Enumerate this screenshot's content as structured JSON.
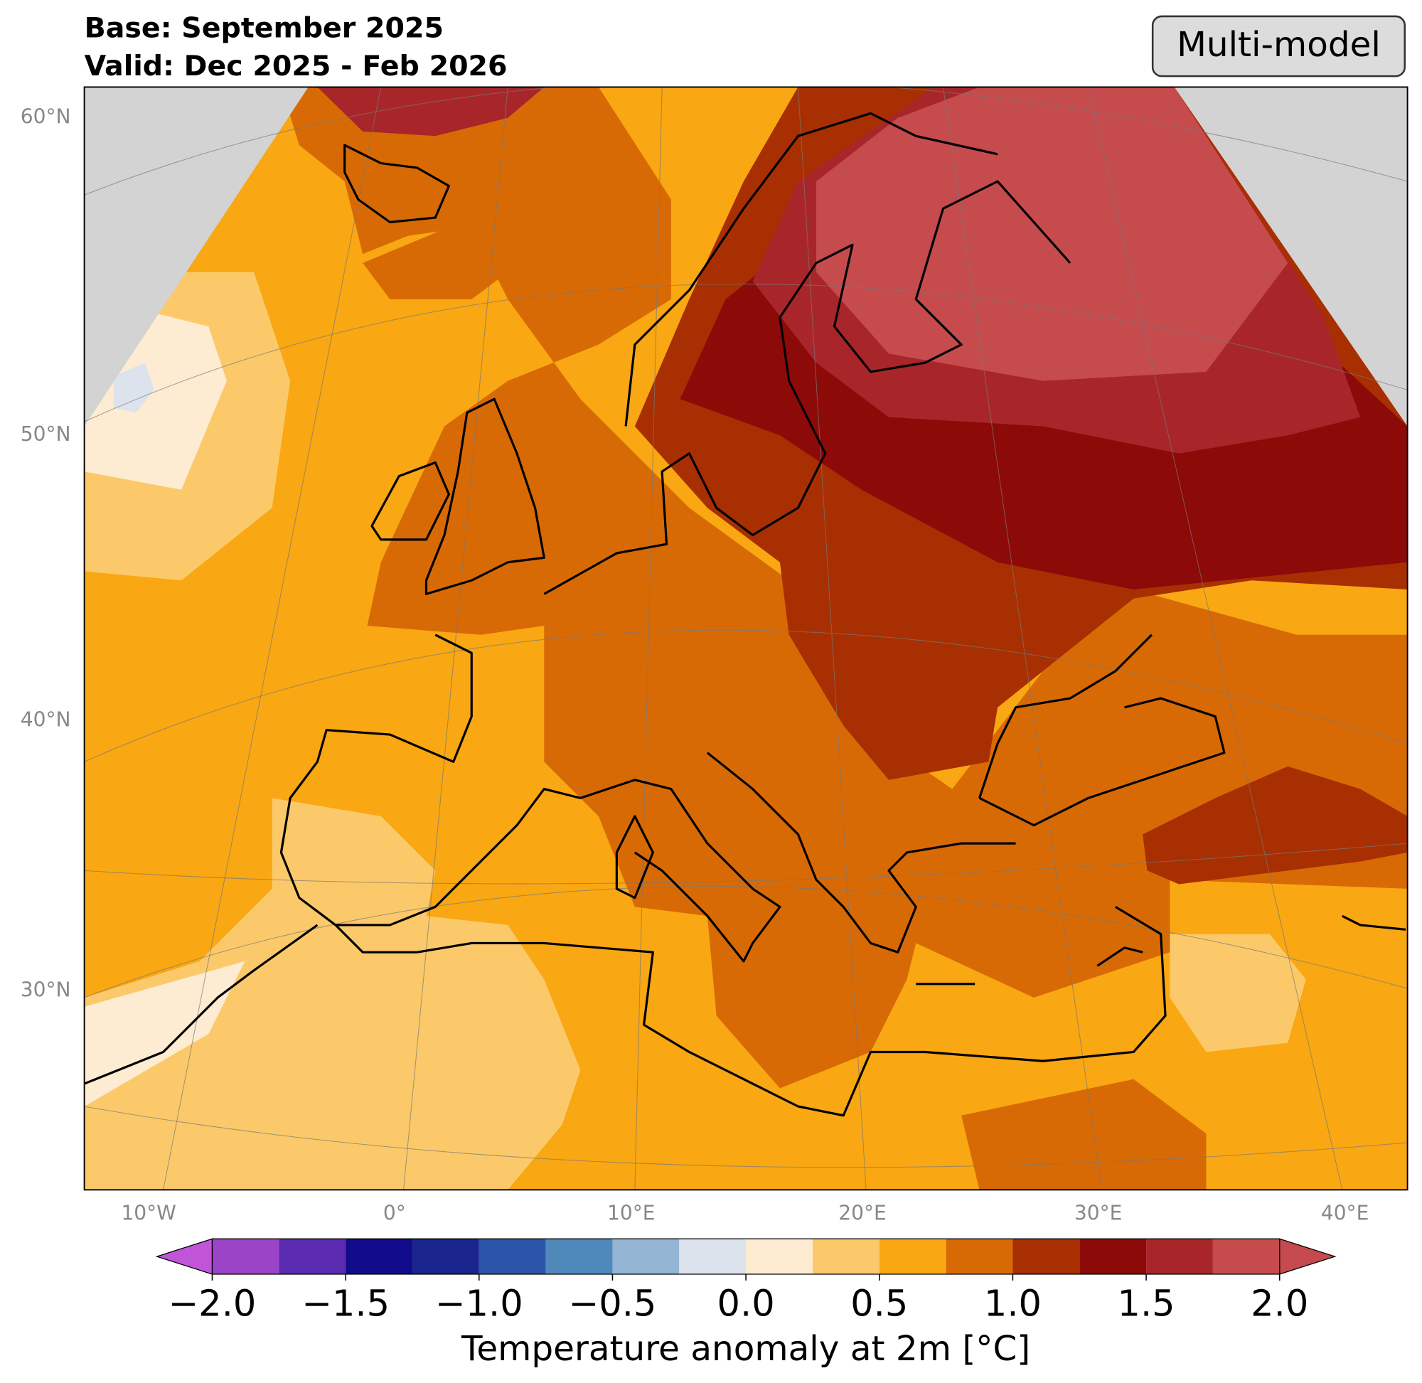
{
  "chart_data": {
    "type": "map",
    "title": "Base: September 2025",
    "subtitle": "Valid: Dec 2025 - Feb 2026",
    "badge": "Multi-model",
    "lat_labels": [
      "60°N",
      "50°N",
      "40°N",
      "30°N"
    ],
    "lon_labels": [
      "10°W",
      "0°",
      "10°E",
      "20°E",
      "30°E",
      "40°E"
    ],
    "colorbar": {
      "label": "Temperature anomaly at 2m [°C]",
      "levels": [
        -2,
        -1.75,
        -1.5,
        -1.25,
        -1,
        -0.75,
        -0.5,
        -0.25,
        0,
        0.25,
        0.5,
        0.75,
        1,
        1.25,
        1.5,
        1.75,
        2
      ],
      "colors": [
        "#9b44c8",
        "#5a2bb0",
        "#110a8a",
        "#19248c",
        "#2c54a8",
        "#4f88bb",
        "#94b6d4",
        "#dde3ed",
        "#fdecd2",
        "#fcc96a",
        "#f9a712",
        "#d86a05",
        "#a82f02",
        "#8c0a08",
        "#a82629",
        "#c54b4d"
      ],
      "extend_colors": [
        "#c055d8",
        "#c54a4e"
      ],
      "ticks": [
        {
          "value": -2,
          "label": "−2.0"
        },
        {
          "value": -1.5,
          "label": "−1.5"
        },
        {
          "value": -1,
          "label": "−1.0"
        },
        {
          "value": -0.5,
          "label": "−0.5"
        },
        {
          "value": 0,
          "label": "0.0"
        },
        {
          "value": 0.5,
          "label": "0.5"
        },
        {
          "value": 1,
          "label": "1.0"
        },
        {
          "value": 1.5,
          "label": "1.5"
        },
        {
          "value": 2,
          "label": "2.0"
        }
      ]
    }
  }
}
